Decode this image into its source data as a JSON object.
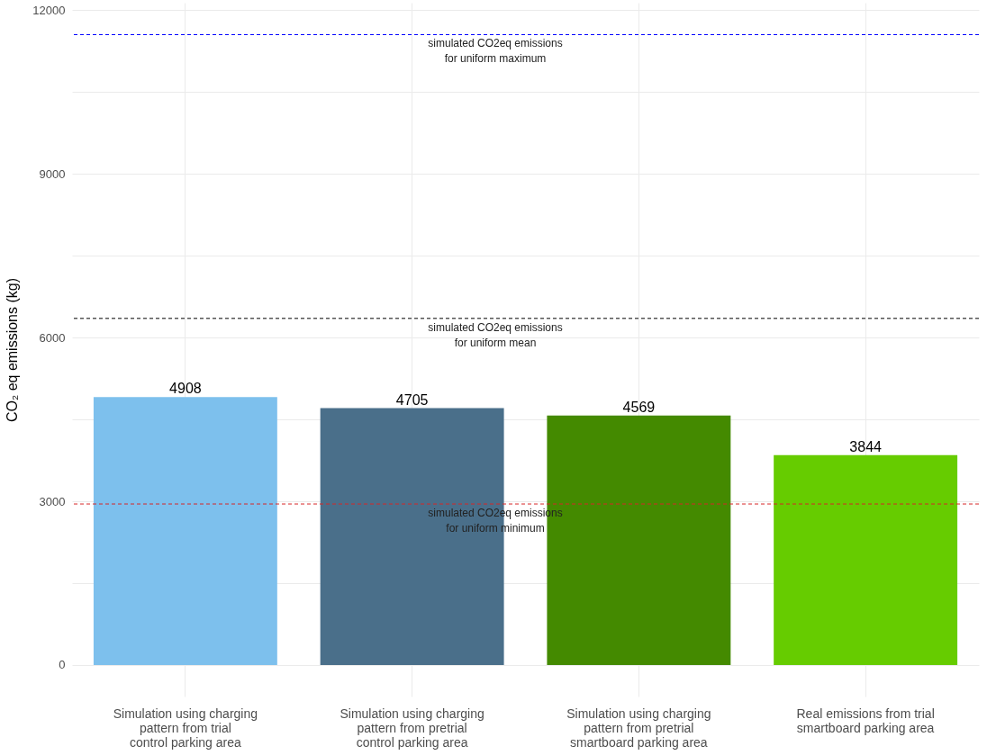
{
  "chart_data": {
    "type": "bar",
    "ylabel": "CO₂ eq  emissions (kg)",
    "categories": [
      "Simulation using charging\npattern from trial\ncontrol parking area",
      "Simulation using charging\npattern from pretrial\ncontrol parking area",
      "Simulation using charging\npattern from pretrial\nsmartboard parking area",
      "Real emissions from trial\nsmartboard parking area"
    ],
    "values": [
      4908,
      4705,
      4569,
      3844
    ],
    "colors": [
      "#7dc0ed",
      "#4a6f8a",
      "#448a00",
      "#66cc00"
    ],
    "data_labels": true,
    "ylim": [
      -578,
      12135
    ],
    "yticks": [
      0,
      {
        "value": 1500,
        "label": null
      },
      3000,
      {
        "value": 4500,
        "label": null
      },
      6000,
      {
        "value": 7500,
        "label": null
      },
      9000,
      {
        "value": 10500,
        "label": null
      },
      12000
    ],
    "grid": true,
    "ref_lines": [
      {
        "axis": "y",
        "value": 11550,
        "label": "simulated CO2eq emissions\nfor uniform maximum",
        "color": "#0000ff",
        "line_style": "dashed"
      },
      {
        "axis": "y",
        "value": 6350,
        "label": "simulated CO2eq emissions\nfor uniform mean",
        "color": "#000000",
        "line_style": "dashed"
      },
      {
        "axis": "y",
        "value": 2950,
        "label": "simulated CO2eq emissions\nfor uniform minimum",
        "color": "#d62728",
        "line_style": "dashed"
      }
    ]
  }
}
